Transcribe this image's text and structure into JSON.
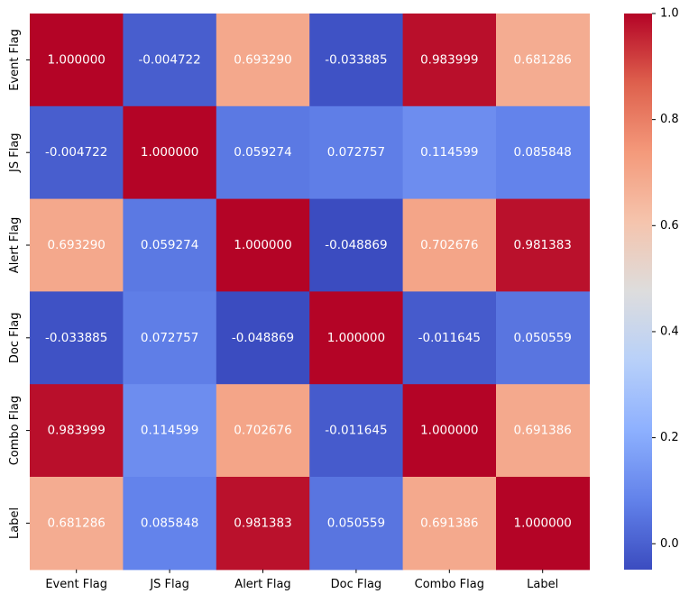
{
  "chart_data": {
    "type": "heatmap",
    "title": "",
    "xlabel": "",
    "ylabel": "",
    "x_categories": [
      "Event Flag",
      "JS Flag",
      "Alert Flag",
      "Doc Flag",
      "Combo Flag",
      "Label"
    ],
    "y_categories": [
      "Event Flag",
      "JS Flag",
      "Alert Flag",
      "Doc Flag",
      "Combo Flag",
      "Label"
    ],
    "values": [
      [
        1.0,
        -0.004722,
        0.69329,
        -0.033885,
        0.983999,
        0.681286
      ],
      [
        -0.004722,
        1.0,
        0.059274,
        0.072757,
        0.114599,
        0.085848
      ],
      [
        0.69329,
        0.059274,
        1.0,
        -0.048869,
        0.702676,
        0.981383
      ],
      [
        -0.033885,
        0.072757,
        -0.048869,
        1.0,
        -0.011645,
        0.050559
      ],
      [
        0.983999,
        0.114599,
        0.702676,
        -0.011645,
        1.0,
        0.691386
      ],
      [
        0.681286,
        0.085848,
        0.981383,
        0.050559,
        0.691386,
        1.0
      ]
    ],
    "cell_labels": [
      [
        "1.000000",
        "-0.004722",
        "0.693290",
        "-0.033885",
        "0.983999",
        "0.681286"
      ],
      [
        "-0.004722",
        "1.000000",
        "0.059274",
        "0.072757",
        "0.114599",
        "0.085848"
      ],
      [
        "0.693290",
        "0.059274",
        "1.000000",
        "-0.048869",
        "0.702676",
        "0.981383"
      ],
      [
        "-0.033885",
        "0.072757",
        "-0.048869",
        "1.000000",
        "-0.011645",
        "0.050559"
      ],
      [
        "0.983999",
        "0.114599",
        "0.702676",
        "-0.011645",
        "1.000000",
        "0.691386"
      ],
      [
        "0.681286",
        "0.085848",
        "0.981383",
        "0.050559",
        "0.691386",
        "1.000000"
      ]
    ],
    "colormap": "coolwarm",
    "colorbar": {
      "vmin": -0.048869,
      "vmax": 1.0,
      "ticks": [
        0.0,
        0.2,
        0.4,
        0.6,
        0.8,
        1.0
      ],
      "tick_labels": [
        "0.0",
        "0.2",
        "0.4",
        "0.6",
        "0.8",
        "1.0"
      ]
    },
    "annotation_color": "#ffffff",
    "grid": false
  }
}
